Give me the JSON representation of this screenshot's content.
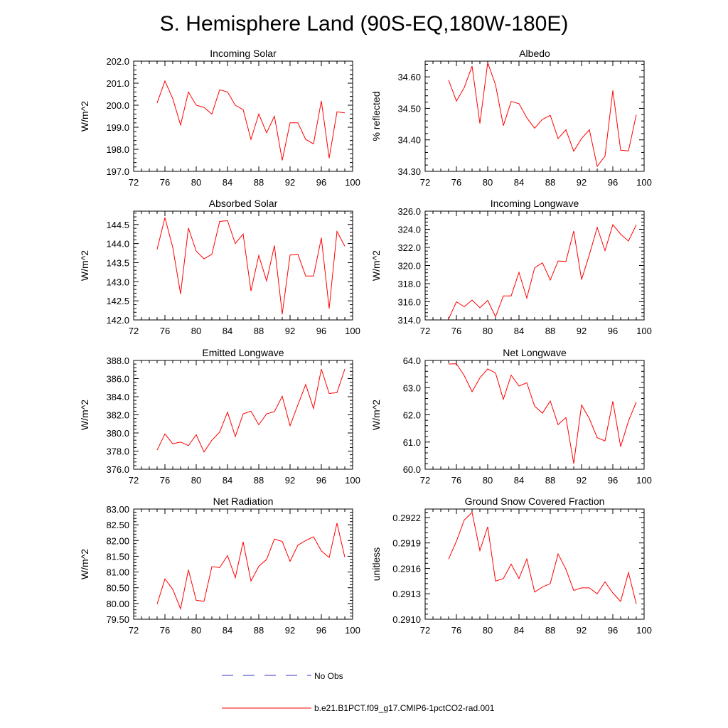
{
  "page_title": "S. Hemisphere Land (90S-EQ,180W-180E)",
  "legend": [
    {
      "label": "No Obs",
      "color": "#3333cc",
      "style": "dashed"
    },
    {
      "label": "b.e21.B1PCT.f09_g17.CMIP6-1pctCO2-rad.001",
      "color": "#ff0000",
      "style": "solid"
    }
  ],
  "chart_data": [
    {
      "id": "incoming-solar",
      "type": "line",
      "title": "Incoming Solar",
      "ylabel": "W/m^2",
      "xlim": [
        72,
        100
      ],
      "xticks": [
        72,
        76,
        80,
        84,
        88,
        92,
        96,
        100
      ],
      "ylim": [
        197,
        202
      ],
      "yticks": [
        "197.0",
        "198.0",
        "199.0",
        "200.0",
        "201.0",
        "202.0"
      ],
      "series": [
        {
          "color": "#ff0000",
          "x": [
            75,
            76,
            77,
            78,
            79,
            80,
            81,
            82,
            83,
            84,
            85,
            86,
            87,
            88,
            89,
            90,
            91,
            92,
            93,
            94,
            95,
            96,
            97,
            98,
            99
          ],
          "y": [
            200.1,
            201.1,
            200.3,
            199.1,
            200.6,
            200.0,
            199.9,
            199.6,
            200.7,
            200.6,
            200.0,
            199.8,
            198.45,
            199.6,
            198.75,
            199.5,
            197.5,
            199.2,
            199.2,
            198.45,
            198.25,
            200.2,
            197.6,
            199.7,
            199.65
          ]
        }
      ]
    },
    {
      "id": "albedo",
      "type": "line",
      "title": "Albedo",
      "ylabel": "% reflected",
      "xlim": [
        72,
        100
      ],
      "xticks": [
        72,
        76,
        80,
        84,
        88,
        92,
        96,
        100
      ],
      "ylim": [
        34.3,
        34.65
      ],
      "yticks": [
        "34.30",
        "34.40",
        "34.50",
        "34.60"
      ],
      "series": [
        {
          "color": "#ff0000",
          "x": [
            75,
            76,
            77,
            78,
            79,
            80,
            81,
            82,
            83,
            84,
            85,
            86,
            87,
            88,
            89,
            90,
            91,
            92,
            93,
            94,
            95,
            96,
            97,
            98,
            99
          ],
          "y": [
            34.59,
            34.523,
            34.566,
            34.634,
            34.452,
            34.645,
            34.575,
            34.445,
            34.522,
            34.515,
            34.47,
            34.437,
            34.465,
            34.478,
            34.404,
            34.432,
            34.364,
            34.404,
            34.432,
            34.316,
            34.348,
            34.557,
            34.367,
            34.365,
            34.48
          ]
        }
      ]
    },
    {
      "id": "absorbed-solar",
      "type": "line",
      "title": "Absorbed Solar",
      "ylabel": "W/m^2",
      "xlim": [
        72,
        100
      ],
      "xticks": [
        72,
        76,
        80,
        84,
        88,
        92,
        96,
        100
      ],
      "ylim": [
        142,
        144.85
      ],
      "yticks": [
        "142.0",
        "142.5",
        "143.0",
        "143.5",
        "144.0",
        "144.5"
      ],
      "series": [
        {
          "color": "#ff0000",
          "x": [
            75,
            76,
            77,
            78,
            79,
            80,
            81,
            82,
            83,
            84,
            85,
            86,
            87,
            88,
            89,
            90,
            91,
            92,
            93,
            94,
            95,
            96,
            97,
            98,
            99
          ],
          "y": [
            143.85,
            144.68,
            143.9,
            142.68,
            144.41,
            143.8,
            143.6,
            143.72,
            144.58,
            144.6,
            144.0,
            144.25,
            142.76,
            143.69,
            143.02,
            143.95,
            142.15,
            143.7,
            143.72,
            143.15,
            143.15,
            144.15,
            142.3,
            144.32,
            143.93
          ]
        }
      ]
    },
    {
      "id": "incoming-longwave",
      "type": "line",
      "title": "Incoming Longwave",
      "ylabel": "W/m^2",
      "xlim": [
        72,
        100
      ],
      "xticks": [
        72,
        76,
        80,
        84,
        88,
        92,
        96,
        100
      ],
      "ylim": [
        314,
        326
      ],
      "yticks": [
        "314.0",
        "316.0",
        "318.0",
        "320.0",
        "322.0",
        "324.0",
        "326.0"
      ],
      "series": [
        {
          "color": "#ff0000",
          "x": [
            75,
            76,
            77,
            78,
            79,
            80,
            81,
            82,
            83,
            84,
            85,
            86,
            87,
            88,
            89,
            90,
            91,
            92,
            93,
            94,
            95,
            96,
            97,
            98,
            99
          ],
          "y": [
            314.1,
            316.0,
            315.45,
            316.2,
            315.35,
            316.15,
            314.35,
            316.65,
            316.65,
            319.25,
            316.4,
            319.75,
            320.3,
            318.4,
            320.5,
            320.45,
            323.8,
            318.45,
            321.2,
            324.2,
            321.65,
            324.5,
            323.45,
            322.7,
            324.5
          ]
        }
      ]
    },
    {
      "id": "emitted-longwave",
      "type": "line",
      "title": "Emitted Longwave",
      "ylabel": "W/m^2",
      "xlim": [
        72,
        100
      ],
      "xticks": [
        72,
        76,
        80,
        84,
        88,
        92,
        96,
        100
      ],
      "ylim": [
        376,
        388
      ],
      "yticks": [
        "376.0",
        "378.0",
        "380.0",
        "382.0",
        "384.0",
        "386.0",
        "388.0"
      ],
      "series": [
        {
          "color": "#ff0000",
          "x": [
            75,
            76,
            77,
            78,
            79,
            80,
            81,
            82,
            83,
            84,
            85,
            86,
            87,
            88,
            89,
            90,
            91,
            92,
            93,
            94,
            95,
            96,
            97,
            98,
            99
          ],
          "y": [
            378.1,
            379.9,
            378.8,
            379.0,
            378.6,
            379.8,
            377.9,
            379.2,
            380.1,
            382.3,
            379.6,
            382.1,
            382.4,
            380.9,
            382.1,
            382.35,
            384.05,
            380.8,
            383.1,
            385.35,
            382.7,
            387.05,
            384.35,
            384.45,
            387.05
          ]
        }
      ]
    },
    {
      "id": "net-longwave",
      "type": "line",
      "title": "Net Longwave",
      "ylabel": "W/m^2",
      "xlim": [
        72,
        100
      ],
      "xticks": [
        72,
        76,
        80,
        84,
        88,
        92,
        96,
        100
      ],
      "ylim": [
        60,
        64
      ],
      "yticks": [
        "60.0",
        "61.0",
        "62.0",
        "63.0",
        "64.0"
      ],
      "series": [
        {
          "color": "#ff0000",
          "x": [
            75,
            76,
            77,
            78,
            79,
            80,
            81,
            82,
            83,
            84,
            85,
            86,
            87,
            88,
            89,
            90,
            91,
            92,
            93,
            94,
            95,
            96,
            97,
            98,
            99
          ],
          "y": [
            63.87,
            63.88,
            63.44,
            62.85,
            63.36,
            63.69,
            63.54,
            62.57,
            63.46,
            63.06,
            63.18,
            62.32,
            62.06,
            62.51,
            61.64,
            61.9,
            60.21,
            62.36,
            61.86,
            61.16,
            61.04,
            62.5,
            60.83,
            61.77,
            62.47
          ]
        }
      ]
    },
    {
      "id": "net-radiation",
      "type": "line",
      "title": "Net Radiation",
      "ylabel": "W/m^2",
      "xlim": [
        72,
        100
      ],
      "xticks": [
        72,
        76,
        80,
        84,
        88,
        92,
        96,
        100
      ],
      "ylim": [
        79.5,
        83
      ],
      "yticks": [
        "79.50",
        "80.00",
        "80.50",
        "81.00",
        "81.50",
        "82.00",
        "82.50",
        "83.00"
      ],
      "series": [
        {
          "color": "#ff0000",
          "x": [
            75,
            76,
            77,
            78,
            79,
            80,
            81,
            82,
            83,
            84,
            85,
            86,
            87,
            88,
            89,
            90,
            91,
            92,
            93,
            94,
            95,
            96,
            97,
            98,
            99
          ],
          "y": [
            79.98,
            80.78,
            80.45,
            79.83,
            81.07,
            80.1,
            80.07,
            81.17,
            81.14,
            81.52,
            80.82,
            81.96,
            80.71,
            81.18,
            81.4,
            82.05,
            81.97,
            81.34,
            81.85,
            82.0,
            82.12,
            81.67,
            81.46,
            82.55,
            81.47
          ]
        }
      ]
    },
    {
      "id": "ground-snow-covered-fraction",
      "type": "line",
      "title": "Ground Snow Covered Fraction",
      "ylabel": "unitless",
      "xlim": [
        72,
        100
      ],
      "xticks": [
        72,
        76,
        80,
        84,
        88,
        92,
        96,
        100
      ],
      "ylim": [
        0.291,
        0.2923
      ],
      "yticks": [
        "0.2910",
        "0.2913",
        "0.2916",
        "0.2919",
        "0.2922"
      ],
      "series": [
        {
          "color": "#ff0000",
          "x": [
            75,
            76,
            77,
            78,
            79,
            80,
            81,
            82,
            83,
            84,
            85,
            86,
            87,
            88,
            89,
            90,
            91,
            92,
            93,
            94,
            95,
            96,
            97,
            98,
            99
          ],
          "y": [
            0.29171,
            0.29192,
            0.29217,
            0.29226,
            0.29181,
            0.29209,
            0.29145,
            0.29148,
            0.29165,
            0.29148,
            0.29171,
            0.29132,
            0.29138,
            0.29142,
            0.29177,
            0.29159,
            0.29134,
            0.29137,
            0.29137,
            0.2913,
            0.29144,
            0.29131,
            0.29121,
            0.29155,
            0.29118
          ]
        }
      ]
    }
  ]
}
